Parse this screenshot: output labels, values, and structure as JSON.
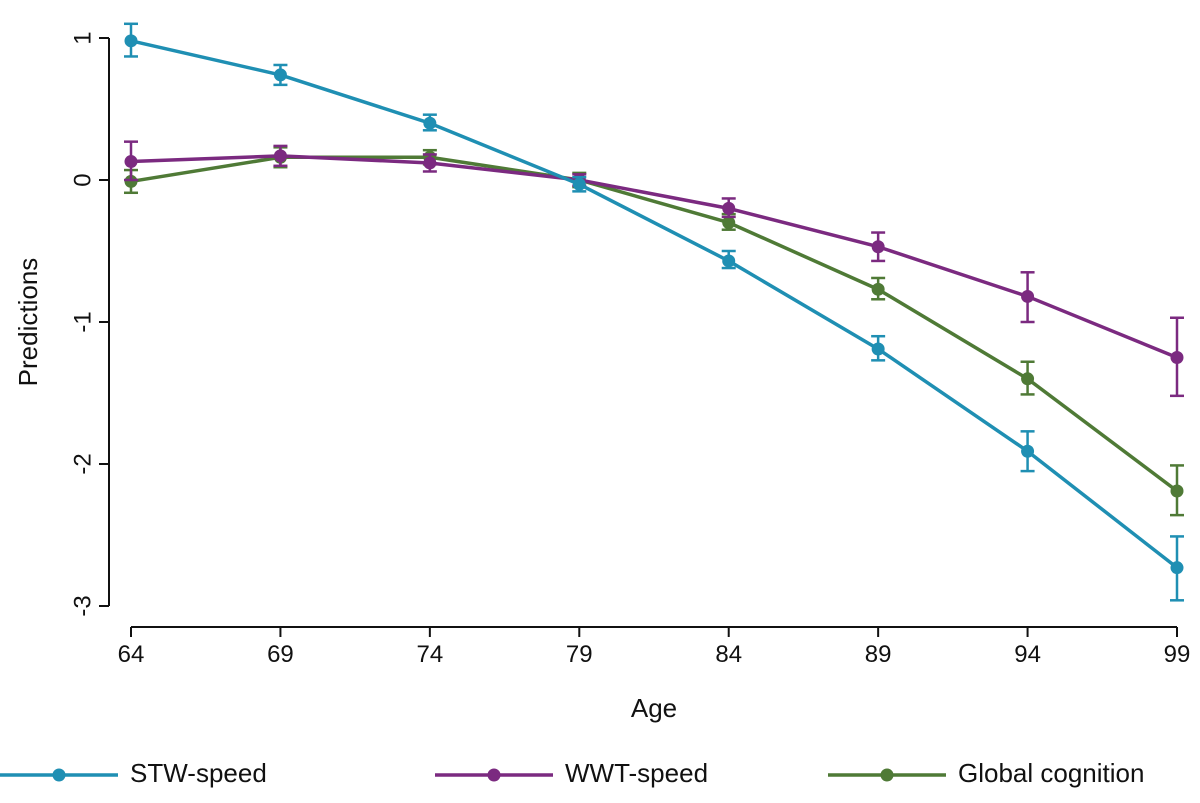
{
  "chart_data": {
    "type": "line",
    "title": "",
    "xlabel": "Age",
    "ylabel": "Predictions",
    "x": [
      64,
      69,
      74,
      79,
      84,
      89,
      94,
      99
    ],
    "xlim": [
      64,
      99
    ],
    "ylim": [
      -3,
      1
    ],
    "xticks": [
      "64",
      "69",
      "74",
      "79",
      "84",
      "89",
      "94",
      "99"
    ],
    "yticks": [
      {
        "value": 1,
        "label": "1"
      },
      {
        "value": 0,
        "label": "0"
      },
      {
        "value": -1,
        "label": "-1"
      },
      {
        "value": -2,
        "label": "-2"
      },
      {
        "value": -3,
        "label": "-3"
      }
    ],
    "grid": false,
    "legend_position": "bottom",
    "series": [
      {
        "name": "STW-speed",
        "color": "#1f8fb3",
        "values": [
          0.98,
          0.74,
          0.4,
          -0.03,
          -0.57,
          -1.19,
          -1.91,
          -2.73
        ],
        "lower": [
          0.87,
          0.67,
          0.35,
          -0.08,
          -0.62,
          -1.27,
          -2.05,
          -2.96
        ],
        "upper": [
          1.1,
          0.81,
          0.46,
          0.02,
          -0.5,
          -1.1,
          -1.77,
          -2.51
        ]
      },
      {
        "name": "WWT-speed",
        "color": "#7b2a80",
        "values": [
          0.13,
          0.17,
          0.12,
          0.0,
          -0.2,
          -0.47,
          -0.82,
          -1.25
        ],
        "lower": [
          0.0,
          0.1,
          0.06,
          -0.04,
          -0.26,
          -0.57,
          -1.0,
          -1.52
        ],
        "upper": [
          0.27,
          0.24,
          0.18,
          0.04,
          -0.13,
          -0.37,
          -0.65,
          -0.97
        ]
      },
      {
        "name": "Global cognition",
        "color": "#4f7a36",
        "values": [
          -0.01,
          0.16,
          0.16,
          0.0,
          -0.3,
          -0.77,
          -1.4,
          -2.19
        ],
        "lower": [
          -0.09,
          0.09,
          0.11,
          -0.05,
          -0.35,
          -0.84,
          -1.51,
          -2.36
        ],
        "upper": [
          0.07,
          0.23,
          0.21,
          0.05,
          -0.24,
          -0.69,
          -1.28,
          -2.01
        ]
      }
    ]
  }
}
